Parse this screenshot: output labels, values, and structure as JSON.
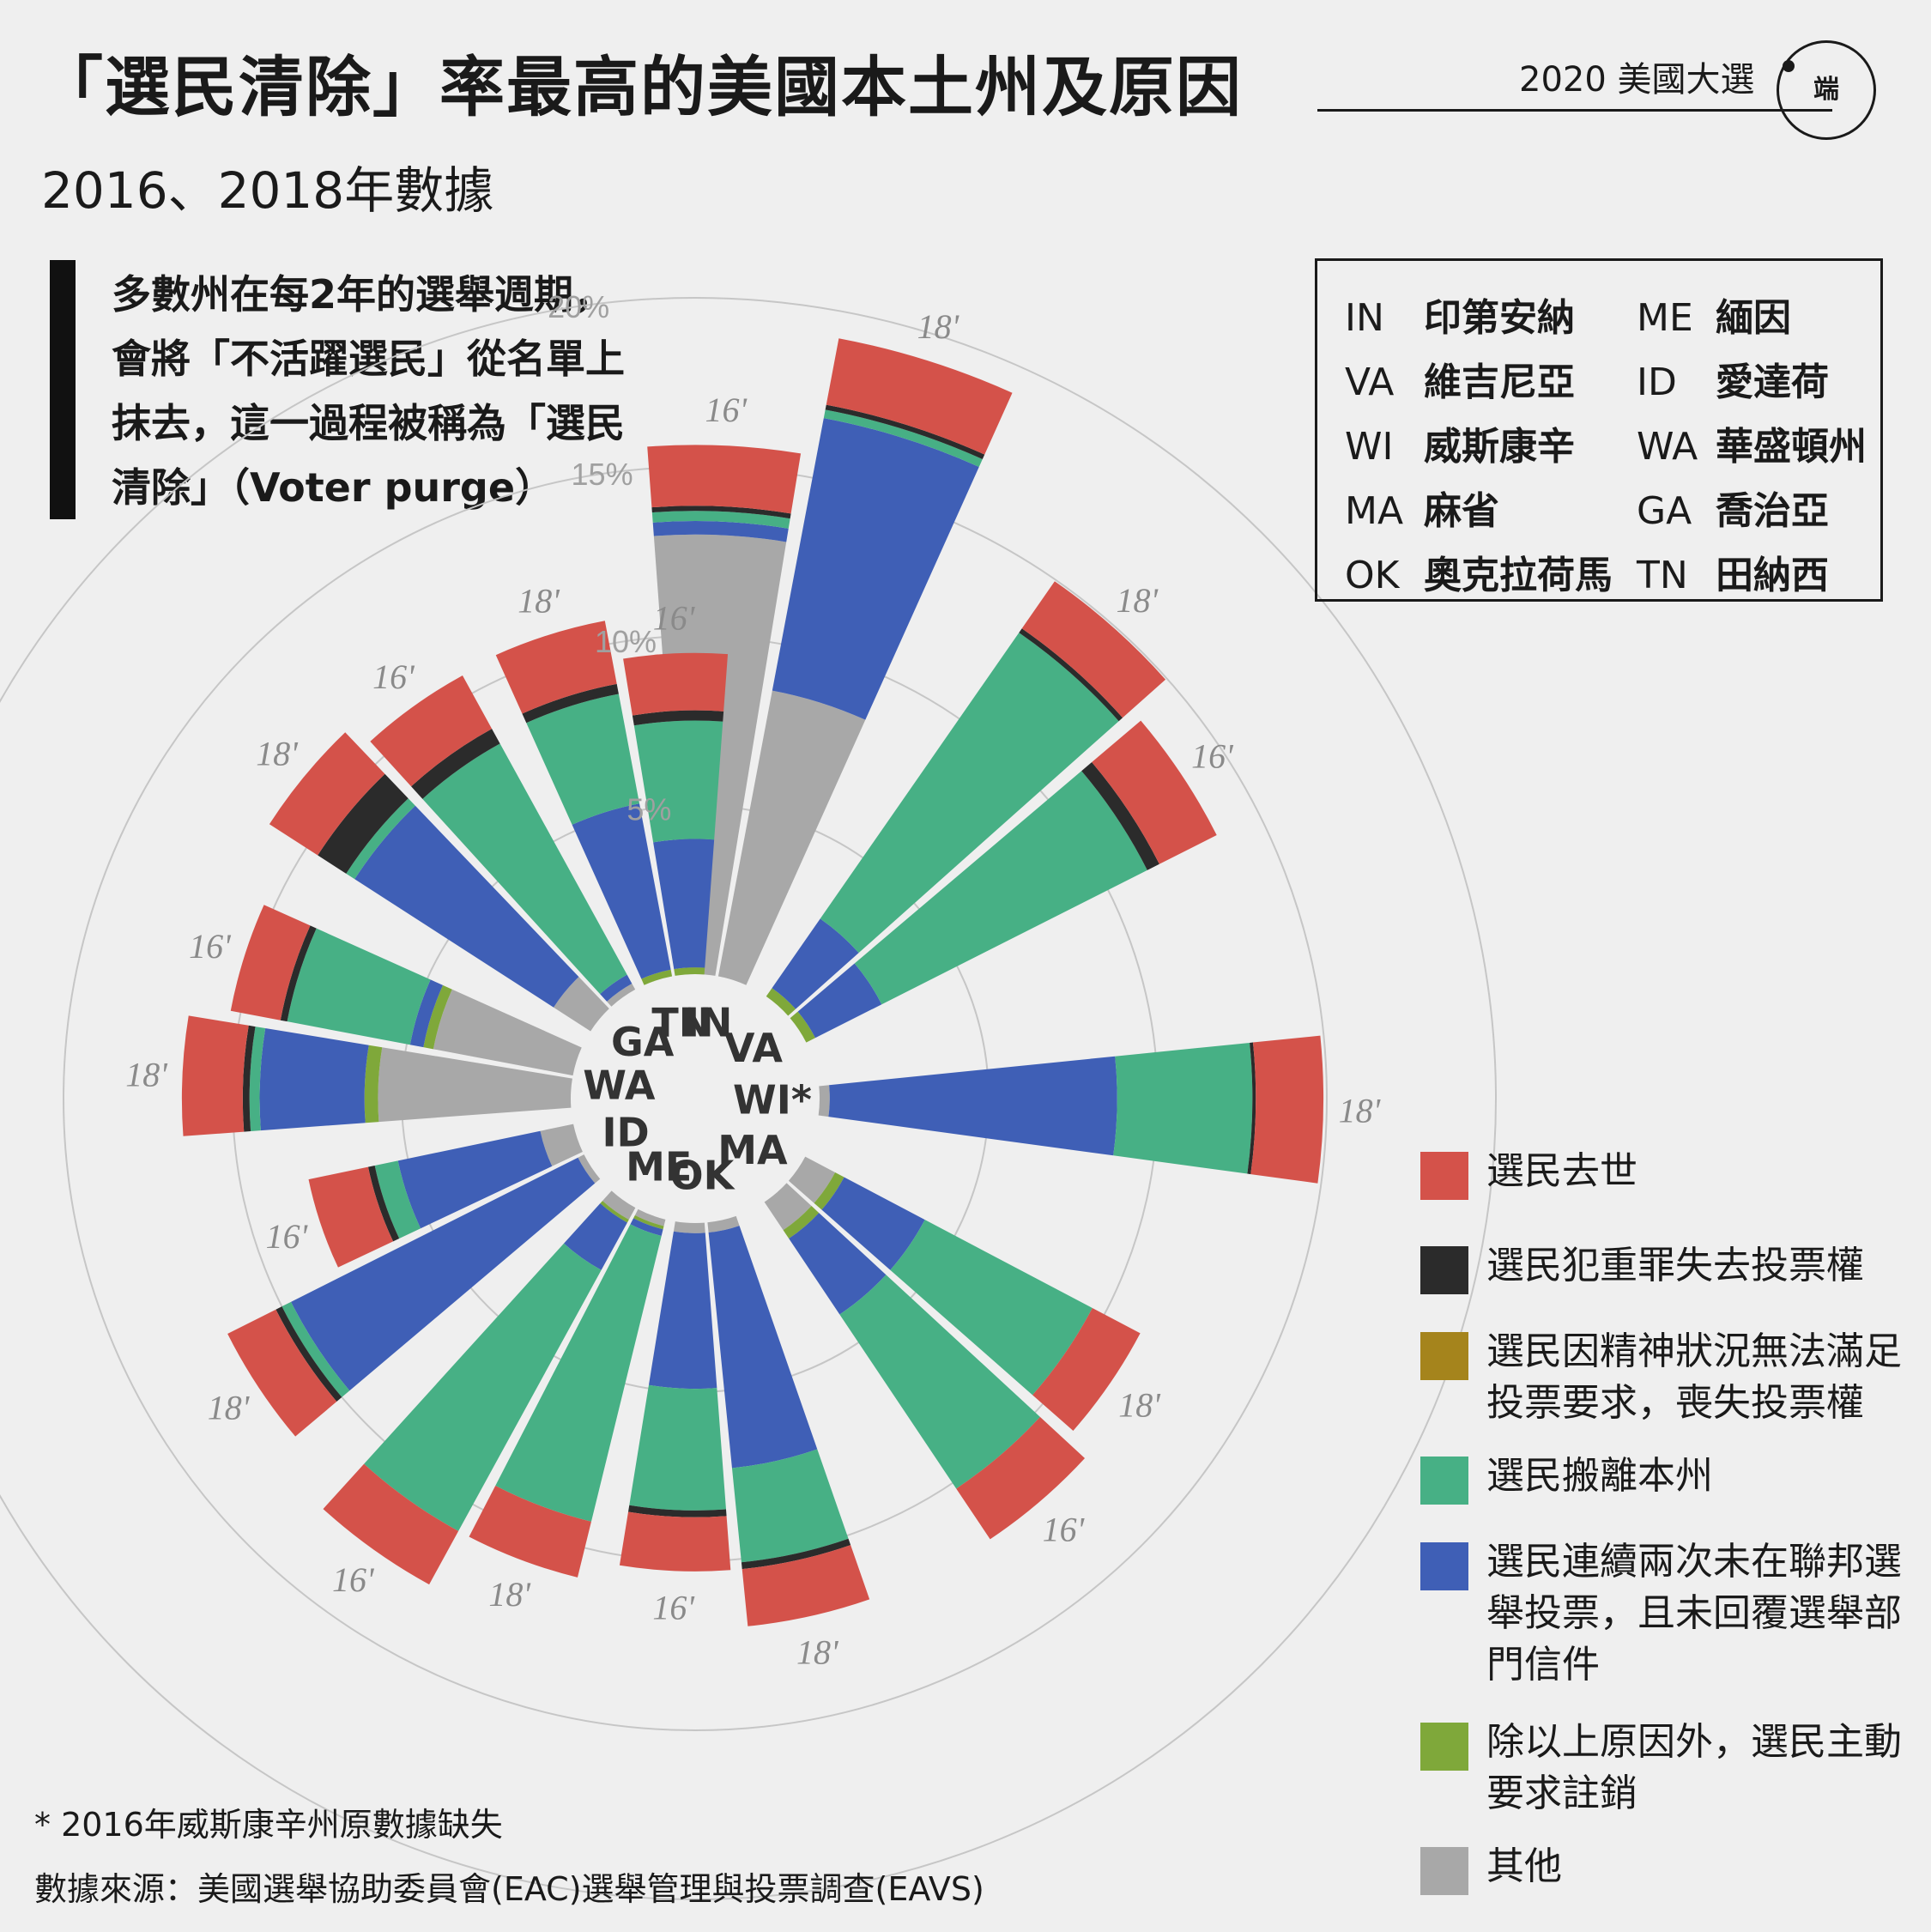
{
  "header": {
    "title": "「選民清除」率最高的美國本土州及原因",
    "series_tag": "2020 美國大選",
    "logo_glyph": "端",
    "subtitle": "2016、2018年數據"
  },
  "description_lines": [
    "多數州在每2年的選舉週期，",
    "會將「不活躍選民」從名單上",
    "抹去，這一過程被稱為「選民",
    "清除」（Voter purge）"
  ],
  "abbreviations": [
    {
      "code": "IN",
      "name": "印第安納"
    },
    {
      "code": "VA",
      "name": "維吉尼亞"
    },
    {
      "code": "WI",
      "name": "威斯康辛"
    },
    {
      "code": "MA",
      "name": "麻省"
    },
    {
      "code": "OK",
      "name": "奧克拉荷馬"
    },
    {
      "code": "ME",
      "name": "緬因"
    },
    {
      "code": "ID",
      "name": "愛達荷"
    },
    {
      "code": "WA",
      "name": "華盛頓州"
    },
    {
      "code": "GA",
      "name": "喬治亞"
    },
    {
      "code": "TN",
      "name": "田納西"
    }
  ],
  "legend": [
    {
      "label": "選民去世",
      "color": "#d4524a"
    },
    {
      "label": "選民犯重罪失去投票權",
      "color": "#2b2b2b"
    },
    {
      "label": "選民因精神狀況無法滿足投票要求，喪失投票權",
      "color": "#a5841c"
    },
    {
      "label": "選民搬離本州",
      "color": "#47b085"
    },
    {
      "label": "選民連續兩次未在聯邦選舉投票，且未回覆選舉部門信件",
      "color": "#3f5fb6"
    },
    {
      "label": "除以上原因外，選民主動要求註銷",
      "color": "#7fa83a"
    },
    {
      "label": "其他",
      "color": "#a8a8a8"
    }
  ],
  "footnote": "* 2016年威斯康辛州原數據缺失",
  "source": "數據來源：美國選舉協助委員會(EAC)選舉管理與投票調查(EAVS)",
  "chart_data": {
    "type": "radial stacked bar",
    "radial_ticks": [
      "5%",
      "10%",
      "15%",
      "20%"
    ],
    "radial_tick_values": [
      5,
      10,
      15,
      20
    ],
    "stack_order": [
      "其他",
      "除以上原因外，選民主動要求註銷",
      "選民連續兩次未在聯邦選舉投票，且未回覆選舉部門信件",
      "選民搬離本州",
      "選民因精神狀況無法滿足投票要求，喪失投票權",
      "選民犯重罪失去投票權",
      "選民去世"
    ],
    "states": [
      {
        "state": "IN",
        "label": "IN",
        "bars": [
          {
            "year": "16'",
            "values": [
              13.0,
              0.0,
              0.4,
              0.3,
              0.0,
              0.15,
              1.8
            ]
          },
          {
            "year": "18'",
            "values": [
              8.6,
              0.0,
              8.2,
              0.25,
              0.0,
              0.15,
              2.0
            ]
          }
        ]
      },
      {
        "state": "VA",
        "label": "VA",
        "bars": [
          {
            "year": "18'",
            "values": [
              0.0,
              0.3,
              2.5,
              10.3,
              0.0,
              0.15,
              1.7
            ]
          },
          {
            "year": "16'",
            "values": [
              0.0,
              0.3,
              2.2,
              8.8,
              0.0,
              0.4,
              1.9
            ]
          }
        ]
      },
      {
        "state": "WI",
        "label": "WI*",
        "bars": [
          {
            "year": "18'",
            "values": [
              0.3,
              0.0,
              8.5,
              4.0,
              0.0,
              0.1,
              2.0
            ]
          }
        ]
      },
      {
        "state": "MA",
        "label": "MA",
        "bars": [
          {
            "year": "18'",
            "values": [
              1.0,
              0.3,
              2.7,
              5.6,
              0.0,
              0.0,
              1.6
            ]
          },
          {
            "year": "16'",
            "values": [
              1.0,
              0.3,
              2.7,
              6.2,
              0.0,
              0.0,
              1.8
            ]
          }
        ]
      },
      {
        "state": "OK",
        "label": "OK",
        "bars": [
          {
            "year": "18'",
            "values": [
              0.3,
              0.0,
              7.0,
              2.8,
              0.0,
              0.2,
              1.7
            ]
          },
          {
            "year": "16'",
            "values": [
              0.3,
              0.0,
              4.6,
              3.6,
              0.0,
              0.2,
              1.6
            ]
          }
        ]
      },
      {
        "state": "ME",
        "label": "ME",
        "bars": [
          {
            "year": "18'",
            "values": [
              0.2,
              0.1,
              0.2,
              8.7,
              0.0,
              0.0,
              1.7
            ]
          },
          {
            "year": "16'",
            "values": [
              0.4,
              0.1,
              1.6,
              8.8,
              0.0,
              0.0,
              1.8
            ]
          }
        ]
      },
      {
        "state": "ID",
        "label": "ID",
        "bars": [
          {
            "year": "18'",
            "values": [
              0.2,
              0.0,
              9.5,
              0.3,
              0.0,
              0.2,
              1.6
            ]
          },
          {
            "year": "16'",
            "values": [
              1.0,
              0.0,
              4.3,
              0.7,
              0.0,
              0.2,
              1.8
            ]
          }
        ]
      },
      {
        "state": "WA",
        "label": "WA",
        "bars": [
          {
            "year": "18'",
            "values": [
              5.7,
              0.4,
              3.1,
              0.3,
              0.0,
              0.2,
              1.8
            ]
          },
          {
            "year": "16'",
            "values": [
              4.2,
              0.3,
              0.4,
              3.7,
              0.0,
              0.2,
              1.5
            ]
          }
        ]
      },
      {
        "state": "GA",
        "label": "GA",
        "bars": [
          {
            "year": "18'",
            "values": [
              1.3,
              0.0,
              7.0,
              0.3,
              0.0,
              1.0,
              1.7
            ]
          },
          {
            "year": "16'",
            "values": [
              0.2,
              0.0,
              0.3,
              7.8,
              0.0,
              0.5,
              1.8
            ]
          }
        ]
      },
      {
        "state": "TN",
        "label": "TN",
        "bars": [
          {
            "year": "18'",
            "values": [
              0.0,
              0.2,
              5.0,
              3.3,
              0.0,
              0.3,
              1.9
            ]
          },
          {
            "year": "16'",
            "values": [
              0.0,
              0.2,
              3.8,
              3.5,
              0.0,
              0.3,
              1.7
            ]
          }
        ]
      }
    ]
  }
}
